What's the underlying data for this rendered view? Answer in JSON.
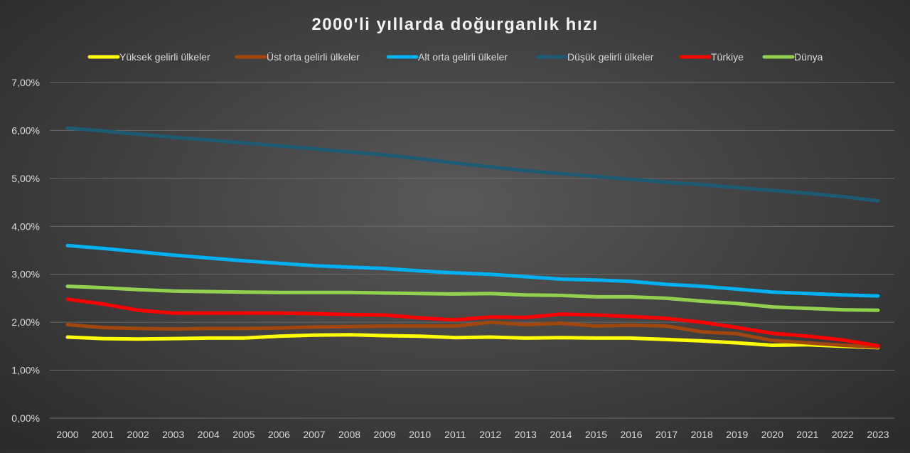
{
  "chart_data": {
    "type": "line",
    "title": "2000'li yıllarda doğurganlık hızı",
    "xlabel": "",
    "ylabel": "",
    "x": [
      "2000",
      "2001",
      "2002",
      "2003",
      "2004",
      "2005",
      "2006",
      "2007",
      "2008",
      "2009",
      "2010",
      "2011",
      "2012",
      "2013",
      "2014",
      "2015",
      "2016",
      "2017",
      "2018",
      "2019",
      "2020",
      "2021",
      "2022",
      "2023"
    ],
    "y_ticks": [
      "0,00%",
      "1,00%",
      "2,00%",
      "3,00%",
      "4,00%",
      "5,00%",
      "6,00%",
      "7,00%"
    ],
    "ylim": [
      0,
      7
    ],
    "grid": true,
    "legend_position": "top",
    "series": [
      {
        "name": "Yüksek gelirli ülkeler",
        "color": "#ffff00",
        "values": [
          1.69,
          1.66,
          1.65,
          1.66,
          1.67,
          1.67,
          1.71,
          1.73,
          1.74,
          1.72,
          1.71,
          1.68,
          1.69,
          1.67,
          1.68,
          1.67,
          1.67,
          1.64,
          1.61,
          1.57,
          1.52,
          1.53,
          1.5,
          1.47
        ]
      },
      {
        "name": "Üst orta gelirli ülkeler",
        "color": "#a0460f",
        "values": [
          1.95,
          1.89,
          1.87,
          1.86,
          1.87,
          1.87,
          1.88,
          1.9,
          1.91,
          1.92,
          1.92,
          1.92,
          2.0,
          1.95,
          1.98,
          1.92,
          1.94,
          1.92,
          1.8,
          1.76,
          1.62,
          1.57,
          1.52,
          1.48
        ]
      },
      {
        "name": "Alt orta gelirli ülkeler",
        "color": "#00b0f0",
        "values": [
          3.6,
          3.54,
          3.47,
          3.4,
          3.34,
          3.28,
          3.23,
          3.18,
          3.15,
          3.12,
          3.07,
          3.03,
          3.0,
          2.95,
          2.9,
          2.88,
          2.85,
          2.79,
          2.75,
          2.69,
          2.63,
          2.6,
          2.57,
          2.55
        ]
      },
      {
        "name": "Düşük gelirli ülkeler",
        "color": "#1f5a75",
        "values": [
          6.05,
          5.99,
          5.92,
          5.86,
          5.8,
          5.74,
          5.68,
          5.62,
          5.55,
          5.49,
          5.41,
          5.32,
          5.24,
          5.16,
          5.1,
          5.04,
          4.98,
          4.92,
          4.87,
          4.81,
          4.75,
          4.69,
          4.62,
          4.53
        ]
      },
      {
        "name": "Türkiye",
        "color": "#ff0000",
        "values": [
          2.48,
          2.38,
          2.25,
          2.19,
          2.19,
          2.19,
          2.19,
          2.18,
          2.16,
          2.15,
          2.09,
          2.05,
          2.11,
          2.1,
          2.17,
          2.15,
          2.12,
          2.08,
          2.0,
          1.89,
          1.77,
          1.71,
          1.63,
          1.51
        ]
      },
      {
        "name": "Dünya",
        "color": "#92d050",
        "values": [
          2.75,
          2.72,
          2.68,
          2.65,
          2.64,
          2.63,
          2.62,
          2.62,
          2.62,
          2.61,
          2.6,
          2.59,
          2.6,
          2.57,
          2.56,
          2.53,
          2.53,
          2.5,
          2.44,
          2.39,
          2.32,
          2.29,
          2.26,
          2.25
        ]
      }
    ]
  }
}
